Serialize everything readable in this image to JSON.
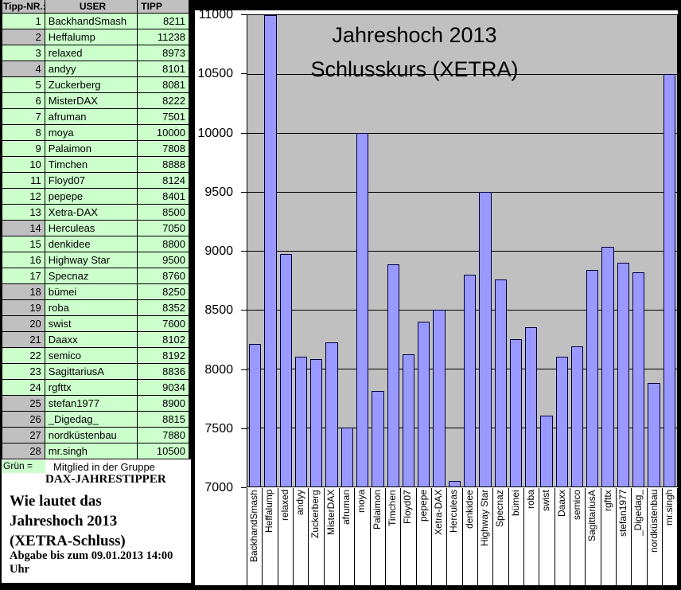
{
  "table": {
    "headers": [
      "Tipp-NR.:",
      "USER",
      "TIPP"
    ],
    "rows": [
      {
        "nr": "1",
        "user": "BackhandSmash",
        "tipp": "8211",
        "member": true
      },
      {
        "nr": "2",
        "user": "Heffalump",
        "tipp": "11238",
        "member": false
      },
      {
        "nr": "3",
        "user": "relaxed",
        "tipp": "8973",
        "member": true
      },
      {
        "nr": "4",
        "user": "andyy",
        "tipp": "8101",
        "member": false
      },
      {
        "nr": "5",
        "user": "Zuckerberg",
        "tipp": "8081",
        "member": true
      },
      {
        "nr": "6",
        "user": "MisterDAX",
        "tipp": "8222",
        "member": true
      },
      {
        "nr": "7",
        "user": "afruman",
        "tipp": "7501",
        "member": true
      },
      {
        "nr": "8",
        "user": "moya",
        "tipp": "10000",
        "member": true
      },
      {
        "nr": "9",
        "user": "Palaimon",
        "tipp": "7808",
        "member": true
      },
      {
        "nr": "10",
        "user": "Timchen",
        "tipp": "8888",
        "member": true
      },
      {
        "nr": "11",
        "user": "Floyd07",
        "tipp": "8124",
        "member": true
      },
      {
        "nr": "12",
        "user": "pepepe",
        "tipp": "8401",
        "member": true
      },
      {
        "nr": "13",
        "user": "Xetra-DAX",
        "tipp": "8500",
        "member": true
      },
      {
        "nr": "14",
        "user": "Herculeas",
        "tipp": "7050",
        "member": false
      },
      {
        "nr": "15",
        "user": "denkidee",
        "tipp": "8800",
        "member": true
      },
      {
        "nr": "16",
        "user": "Highway Star",
        "tipp": "9500",
        "member": true
      },
      {
        "nr": "17",
        "user": "Specnaz",
        "tipp": "8760",
        "member": true
      },
      {
        "nr": "18",
        "user": "bümei",
        "tipp": "8250",
        "member": false
      },
      {
        "nr": "19",
        "user": "roba",
        "tipp": "8352",
        "member": false
      },
      {
        "nr": "20",
        "user": "swist",
        "tipp": "7600",
        "member": false
      },
      {
        "nr": "21",
        "user": "Daaxx",
        "tipp": "8102",
        "member": false
      },
      {
        "nr": "22",
        "user": "semico",
        "tipp": "8192",
        "member": true
      },
      {
        "nr": "23",
        "user": "SagittariusA",
        "tipp": "8836",
        "member": true
      },
      {
        "nr": "24",
        "user": "rgfttx",
        "tipp": "9034",
        "member": true
      },
      {
        "nr": "25",
        "user": "stefan1977",
        "tipp": "8900",
        "member": false
      },
      {
        "nr": "26",
        "user": "_Digedag_",
        "tipp": "8815",
        "member": false
      },
      {
        "nr": "27",
        "user": "nordküstenbau",
        "tipp": "7880",
        "member": false
      },
      {
        "nr": "28",
        "user": "mr.singh",
        "tipp": "10500",
        "member": false
      }
    ]
  },
  "legend": {
    "swatch_label": "Grün =",
    "text": "Mitglied in der Gruppe",
    "group": "DAX-JAHRESTIPPER"
  },
  "question": {
    "line1": "Wie lautet das",
    "line2": "Jahreshoch 2013",
    "line3": "(XETRA-Schluss)",
    "deadline": "Abgabe bis zum 09.01.2013 14:00 Uhr"
  },
  "chart_data": {
    "type": "bar",
    "title_line1": "Jahreshoch 2013",
    "title_line2": "Schlusskurs (XETRA)",
    "categories": [
      "BackhandSmash",
      "Heffalump",
      "relaxed",
      "andyy",
      "Zuckerberg",
      "MisterDAX",
      "afruman",
      "moya",
      "Palaimon",
      "Timchen",
      "Floyd07",
      "pepepe",
      "Xetra-DAX",
      "Herculeas",
      "denkidee",
      "Highway Star",
      "Specnaz",
      "bümei",
      "roba",
      "swist",
      "Daaxx",
      "semico",
      "SagittariusA",
      "rgfttx",
      "stefan1977",
      "_Digedag_",
      "nordküstenbau",
      "mr.singh"
    ],
    "values": [
      8211,
      11238,
      8973,
      8101,
      8081,
      8222,
      7501,
      10000,
      7808,
      8888,
      8124,
      8401,
      8500,
      7050,
      8800,
      9500,
      8760,
      8250,
      8352,
      7600,
      8102,
      8192,
      8836,
      9034,
      8900,
      8815,
      7880,
      10500
    ],
    "xlabel": "",
    "ylabel": "",
    "ylim": [
      7000,
      11000
    ],
    "ytick_step": 500,
    "grid": true,
    "legend_position": "none",
    "bar_color": "#9999FF",
    "bar_border_color": "#000040",
    "plot_bg_color": "#C0C0C0"
  },
  "colors": {
    "member_green": "#CCFFCC",
    "nonmember_gray": "#C0C0C0",
    "header_gray": "#C0C0C0",
    "background": "#000000"
  }
}
